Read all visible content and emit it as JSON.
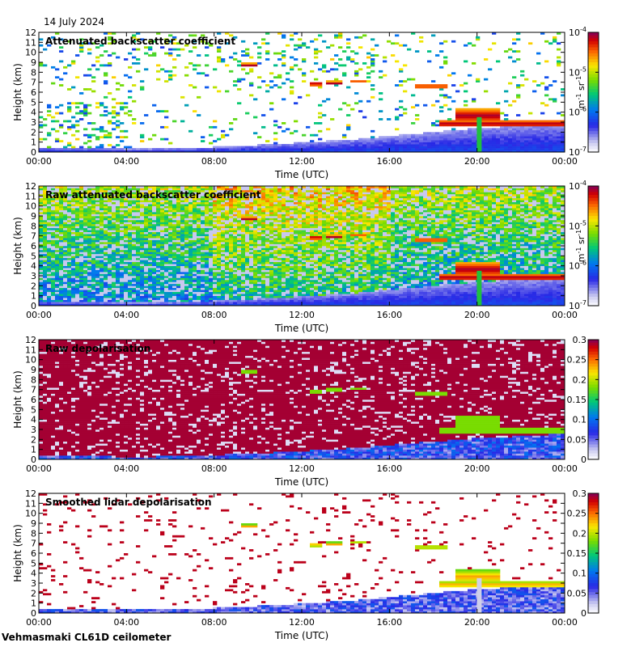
{
  "date": "14 July 2024",
  "footer": "Vehmasmaki CL61D ceilometer",
  "chart_data": [
    {
      "type": "heatmap",
      "title": "Attenuated backscatter coefficient",
      "xlabel": "Time (UTC)",
      "ylabel": "Height (km)",
      "x_ticks": [
        "00:00",
        "04:00",
        "08:00",
        "12:00",
        "16:00",
        "20:00",
        "00:00"
      ],
      "y_ticks": [
        "0",
        "1",
        "2",
        "3",
        "4",
        "5",
        "6",
        "7",
        "8",
        "9",
        "10",
        "11",
        "12"
      ],
      "ylim": [
        0,
        12
      ],
      "xlim_hours": [
        0,
        24
      ],
      "colorbar": {
        "scale": "log",
        "range": [
          1e-07,
          0.0001
        ],
        "ticks": [
          {
            "base": "10",
            "exp": "-4"
          },
          {
            "base": "10",
            "exp": "-5"
          },
          {
            "base": "10",
            "exp": "-6"
          },
          {
            "base": "10",
            "exp": "-7"
          }
        ],
        "unit": "m-1 sr-1"
      },
      "style": "smoothed"
    },
    {
      "type": "heatmap",
      "title": "Raw attenuated backscatter coefficient",
      "xlabel": "Time (UTC)",
      "ylabel": "Height (km)",
      "x_ticks": [
        "00:00",
        "04:00",
        "08:00",
        "12:00",
        "16:00",
        "20:00",
        "00:00"
      ],
      "y_ticks": [
        "0",
        "1",
        "2",
        "3",
        "4",
        "5",
        "6",
        "7",
        "8",
        "9",
        "10",
        "11",
        "12"
      ],
      "ylim": [
        0,
        12
      ],
      "xlim_hours": [
        0,
        24
      ],
      "colorbar": {
        "scale": "log",
        "range": [
          1e-07,
          0.0001
        ],
        "ticks": [
          {
            "base": "10",
            "exp": "-4"
          },
          {
            "base": "10",
            "exp": "-5"
          },
          {
            "base": "10",
            "exp": "-6"
          },
          {
            "base": "10",
            "exp": "-7"
          }
        ],
        "unit": "m-1 sr-1"
      },
      "style": "raw"
    },
    {
      "type": "heatmap",
      "title": "Raw depolarisation",
      "xlabel": "Time (UTC)",
      "ylabel": "Height (km)",
      "x_ticks": [
        "00:00",
        "04:00",
        "08:00",
        "12:00",
        "16:00",
        "20:00",
        "00:00"
      ],
      "y_ticks": [
        "0",
        "1",
        "2",
        "3",
        "4",
        "5",
        "6",
        "7",
        "8",
        "9",
        "10",
        "11",
        "12"
      ],
      "ylim": [
        0,
        12
      ],
      "xlim_hours": [
        0,
        24
      ],
      "colorbar": {
        "scale": "linear",
        "range": [
          0,
          0.3
        ],
        "ticks": [
          "0.3",
          "0.25",
          "0.2",
          "0.15",
          "0.1",
          "0.05",
          "0"
        ]
      },
      "style": "depol_raw"
    },
    {
      "type": "heatmap",
      "title": "Smoothed lidar depolarisation",
      "xlabel": "Time (UTC)",
      "ylabel": "Height (km)",
      "x_ticks": [
        "00:00",
        "04:00",
        "08:00",
        "12:00",
        "16:00",
        "20:00",
        "00:00"
      ],
      "y_ticks": [
        "0",
        "1",
        "2",
        "3",
        "4",
        "5",
        "6",
        "7",
        "8",
        "9",
        "10",
        "11",
        "12"
      ],
      "ylim": [
        0,
        12
      ],
      "xlim_hours": [
        0,
        24
      ],
      "colorbar": {
        "scale": "linear",
        "range": [
          0,
          0.3
        ],
        "ticks": [
          "0.3",
          "0.25",
          "0.2",
          "0.15",
          "0.1",
          "0.05",
          "0"
        ]
      },
      "style": "depol_smooth"
    }
  ],
  "features": {
    "boundary_layer_top_km": [
      [
        0,
        0.5
      ],
      [
        2,
        0.4
      ],
      [
        4,
        0.3
      ],
      [
        6,
        0.35
      ],
      [
        8,
        0.5
      ],
      [
        10,
        0.7
      ],
      [
        12,
        0.95
      ],
      [
        14,
        1.2
      ],
      [
        16,
        1.6
      ],
      [
        18,
        2.0
      ],
      [
        20,
        2.4
      ],
      [
        22,
        2.6
      ],
      [
        24,
        2.9
      ]
    ],
    "cloud_layers": [
      {
        "t_start": 12.3,
        "t_end": 13.0,
        "base_km": 6.7,
        "depth_km": 0.35
      },
      {
        "t_start": 13.2,
        "t_end": 13.8,
        "base_km": 6.8,
        "depth_km": 0.3
      },
      {
        "t_start": 14.2,
        "t_end": 15.0,
        "base_km": 6.9,
        "depth_km": 0.25
      },
      {
        "t_start": 17.2,
        "t_end": 18.6,
        "base_km": 6.5,
        "depth_km": 0.25
      },
      {
        "t_start": 9.2,
        "t_end": 10.0,
        "base_km": 8.6,
        "depth_km": 0.3
      },
      {
        "t_start": 18.3,
        "t_end": 24.0,
        "base_km": 2.6,
        "depth_km": 0.6
      },
      {
        "t_start": 19.0,
        "t_end": 21.0,
        "base_km": 3.2,
        "depth_km": 1.1
      }
    ],
    "precipitation_shaft": {
      "t": 20.1,
      "top_km": 3.5
    }
  }
}
